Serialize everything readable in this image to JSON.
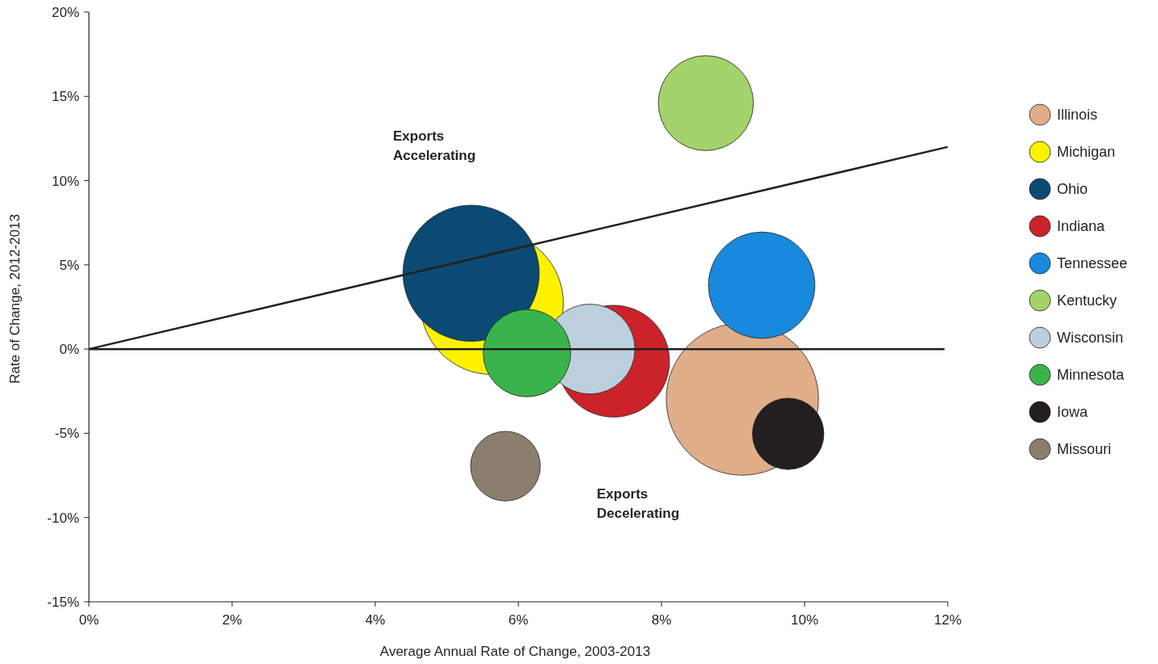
{
  "chart_data": {
    "type": "bubble",
    "xlabel": "Average Annual Rate of Change, 2003-2013",
    "ylabel": "Rate of Change, 2012-2013",
    "xlim": [
      0,
      12
    ],
    "ylim": [
      -15,
      20
    ],
    "xticks": [
      {
        "value": 0,
        "label": "0%"
      },
      {
        "value": 2,
        "label": "2%"
      },
      {
        "value": 4,
        "label": "4%"
      },
      {
        "value": 6,
        "label": "6%"
      },
      {
        "value": 8,
        "label": "8%"
      },
      {
        "value": 10,
        "label": "10%"
      },
      {
        "value": 12,
        "label": "12%"
      }
    ],
    "yticks": [
      {
        "value": -15,
        "label": "-15%"
      },
      {
        "value": -10,
        "label": "-10%"
      },
      {
        "value": -5,
        "label": "-5%"
      },
      {
        "value": 0,
        "label": "0%"
      },
      {
        "value": 5,
        "label": "5%"
      },
      {
        "value": 10,
        "label": "10%"
      },
      {
        "value": 15,
        "label": "15%"
      },
      {
        "value": 20,
        "label": "20%"
      }
    ],
    "grid": false,
    "legend": "right",
    "series": [
      {
        "name": "Illinois",
        "color": "#e0ae89",
        "x": [
          9.13
        ],
        "values": [
          -2.97
        ],
        "sizes": [
          1
        ]
      },
      {
        "name": "Michigan",
        "color": "#fff200",
        "x": [
          5.63
        ],
        "values": [
          2.73
        ],
        "sizes": [
          0.88
        ]
      },
      {
        "name": "Ohio",
        "color": "#0b4a72",
        "x": [
          5.34
        ],
        "values": [
          4.5
        ],
        "sizes": [
          0.8
        ]
      },
      {
        "name": "Indiana",
        "color": "#cc2229",
        "x": [
          7.33
        ],
        "values": [
          -0.72
        ],
        "sizes": [
          0.54
        ]
      },
      {
        "name": "Tennessee",
        "color": "#1889dc",
        "x": [
          9.4
        ],
        "values": [
          3.79
        ],
        "sizes": [
          0.49
        ]
      },
      {
        "name": "Kentucky",
        "color": "#a3d36a",
        "x": [
          8.62
        ],
        "values": [
          14.6
        ],
        "sizes": [
          0.39
        ]
      },
      {
        "name": "Wisconsin",
        "color": "#bccfdc",
        "x": [
          7.0
        ],
        "values": [
          0
        ],
        "sizes": [
          0.35
        ]
      },
      {
        "name": "Minnesota",
        "color": "#39b44a",
        "x": [
          6.12
        ],
        "values": [
          -0.24
        ],
        "sizes": [
          0.33
        ]
      },
      {
        "name": "Iowa",
        "color": "#231f20",
        "x": [
          9.77
        ],
        "values": [
          -5.03
        ],
        "sizes": [
          0.22
        ]
      },
      {
        "name": "Missouri",
        "color": "#8b7e6c",
        "x": [
          5.82
        ],
        "values": [
          -6.95
        ],
        "sizes": [
          0.21
        ]
      },
      {
        "type": "line",
        "color": "#231f20",
        "x": [
          0,
          12
        ],
        "values": [
          0,
          12
        ]
      }
    ],
    "ref_lines": [
      {
        "axis": "y",
        "value": 0,
        "color": "#231f20"
      }
    ],
    "annotations": [
      "Exports\nAccelerating",
      "Exports\nDecelerating"
    ]
  }
}
